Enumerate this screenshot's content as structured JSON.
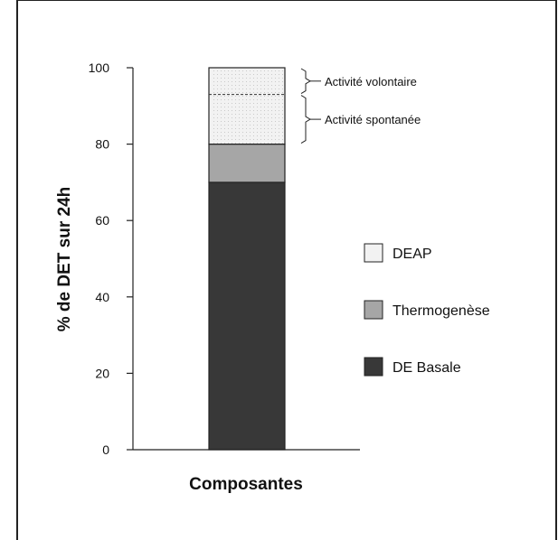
{
  "chart_data": {
    "type": "bar",
    "stacked": true,
    "categories": [
      ""
    ],
    "xlabel": "Composantes",
    "ylabel": "% de DET sur 24h",
    "ylim": [
      0,
      100
    ],
    "yticks": [
      0,
      20,
      40,
      60,
      80,
      100
    ],
    "grid": false,
    "legend_position": "right",
    "series": [
      {
        "name": "DE Basale",
        "values": [
          70
        ],
        "color": "#383838"
      },
      {
        "name": "Thermogenèse",
        "values": [
          10
        ],
        "color": "#a6a6a6"
      },
      {
        "name": "DEAP",
        "values": [
          20
        ],
        "color": "#f2f2f2"
      }
    ],
    "deap_breakdown": [
      {
        "label": "Activité spontanée",
        "from": 80,
        "to": 93
      },
      {
        "label": "Activité volontaire",
        "from": 93,
        "to": 100
      }
    ]
  }
}
